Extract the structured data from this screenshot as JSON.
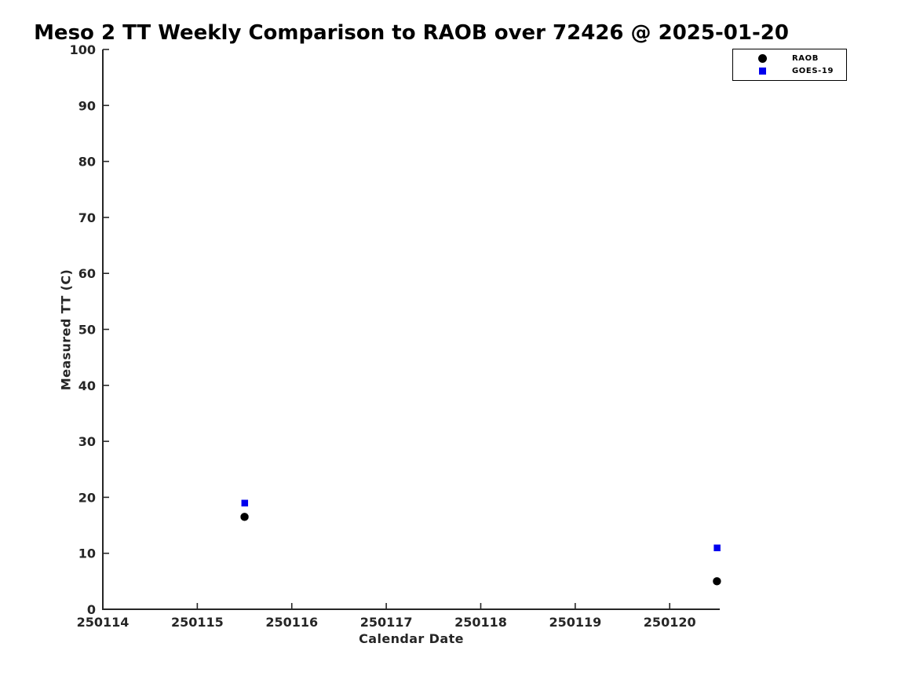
{
  "chart_data": {
    "type": "scatter",
    "title": "Meso 2 TT Weekly Comparison to RAOB over 72426 @ 2025-01-20",
    "xlabel": "Calendar Date",
    "ylabel": "Measured TT (C)",
    "xlim": [
      250114,
      250120.53
    ],
    "ylim": [
      0,
      100
    ],
    "xticks": [
      250114,
      250115,
      250116,
      250117,
      250118,
      250119,
      250120
    ],
    "yticks": [
      0,
      10,
      20,
      30,
      40,
      50,
      60,
      70,
      80,
      90,
      100
    ],
    "grid": false,
    "tick_direction": "in",
    "legend_position": "outside-top-right",
    "axis_color": "#262626",
    "series": [
      {
        "name": "RAOB",
        "marker": "circle",
        "color": "#000000",
        "points": [
          {
            "x": 250115.5,
            "y": 16.5
          },
          {
            "x": 250120.5,
            "y": 5
          }
        ]
      },
      {
        "name": "GOES-19",
        "marker": "square",
        "color": "#0000ee",
        "points": [
          {
            "x": 250115.5,
            "y": 19
          },
          {
            "x": 250120.5,
            "y": 11
          }
        ]
      }
    ]
  }
}
